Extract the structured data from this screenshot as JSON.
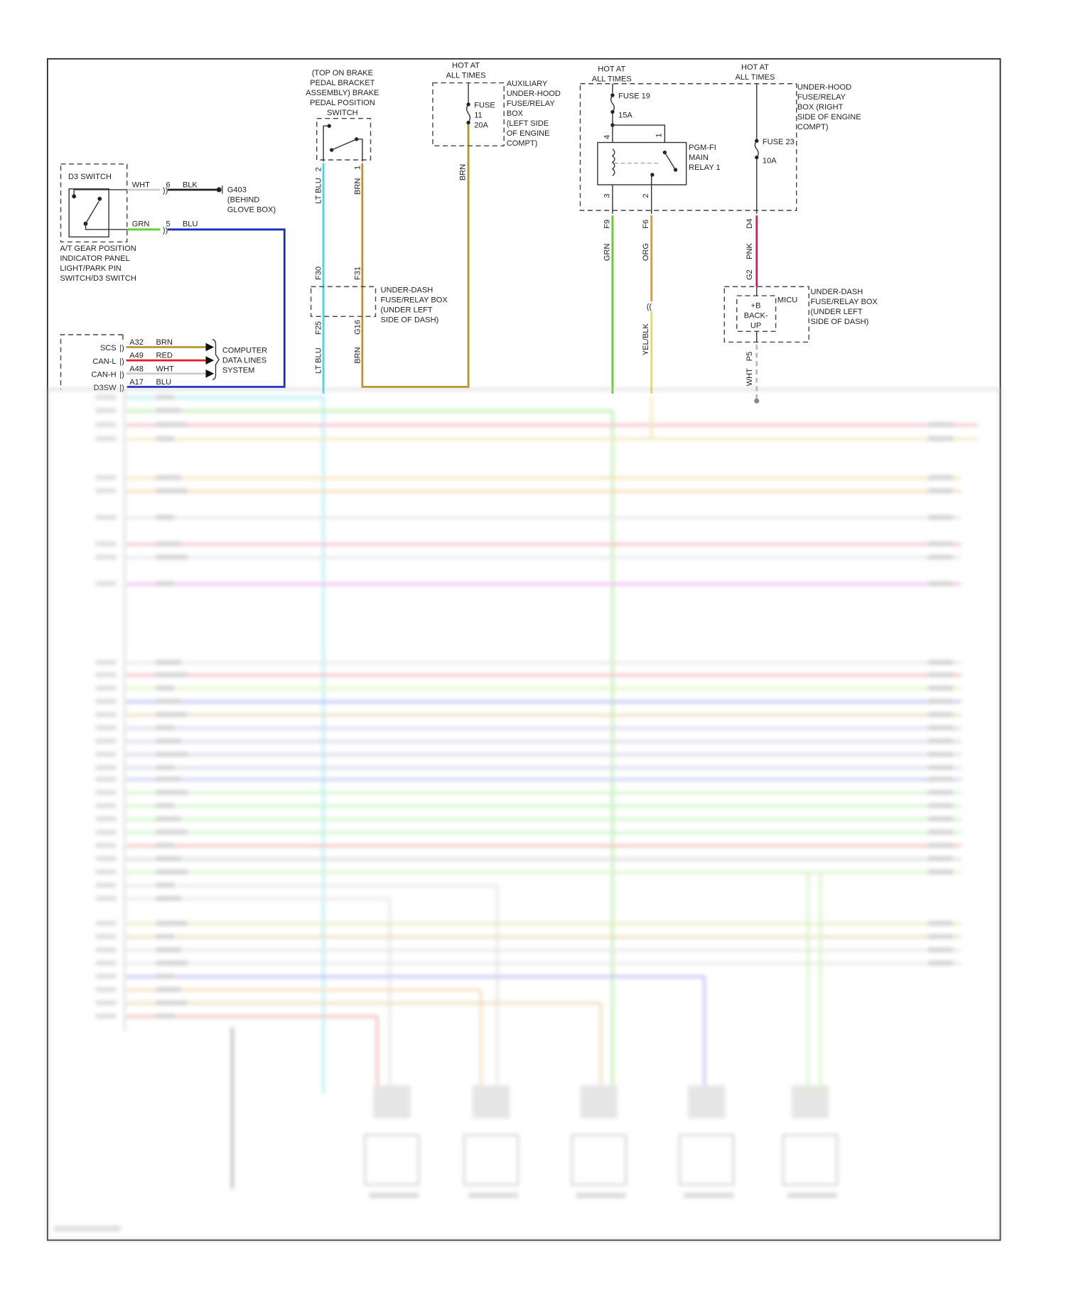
{
  "d3_switch": {
    "title": "D3 SWITCH",
    "wire_top": {
      "color_label": "WHT",
      "pin": "6",
      "to_label": "BLK"
    },
    "wire_bottom": {
      "color_label": "GRN",
      "pin": "5",
      "to_label": "BLU"
    },
    "ground": [
      "G403",
      "(BEHIND",
      "GLOVE BOX)"
    ],
    "caption": [
      "A/T GEAR POSITION",
      "INDICATOR PANEL",
      "LIGHT/PARK PIN",
      "SWITCH/D3 SWITCH"
    ]
  },
  "pcm_pins": [
    {
      "name": "SCS",
      "pin": "A32",
      "wire": "BRN"
    },
    {
      "name": "CAN-L",
      "pin": "A49",
      "wire": "RED"
    },
    {
      "name": "CAN-H",
      "pin": "A48",
      "wire": "WHT"
    },
    {
      "name": "D3SW",
      "pin": "A17",
      "wire": "BLU"
    }
  ],
  "data_lines": [
    "COMPUTER",
    "DATA LINES",
    "SYSTEM"
  ],
  "brake_switch": {
    "title": [
      "(TOP ON BRAKE",
      "PEDAL BRACKET",
      "ASSEMBLY) BRAKE",
      "PEDAL POSITION",
      "SWITCH"
    ],
    "pin_left": "2",
    "pin_right": "1",
    "wire_left": "LT BLU",
    "wire_right": "BRN",
    "conn_f30": "F30",
    "conn_f31": "F31",
    "conn_f25": "F25",
    "conn_g16": "G16",
    "box_label": [
      "UNDER-DASH",
      "FUSE/RELAY BOX",
      "(UNDER LEFT",
      "SIDE OF DASH)"
    ]
  },
  "aux_fuse": {
    "hot": [
      "HOT AT",
      "ALL TIMES"
    ],
    "fuse": [
      "FUSE",
      "11",
      "20A"
    ],
    "box_label": [
      "AUXILIARY",
      "UNDER-HOOD",
      "FUSE/RELAY",
      "BOX",
      "(LEFT SIDE",
      "OF ENGINE",
      "COMPT)"
    ],
    "wire": "BRN"
  },
  "main_relay": {
    "hot_left": [
      "HOT AT",
      "ALL TIMES"
    ],
    "hot_right": [
      "HOT AT",
      "ALL TIMES"
    ],
    "fuse19": [
      "FUSE 19",
      "15A"
    ],
    "fuse23": [
      "FUSE 23",
      "10A"
    ],
    "relay": [
      "PGM-FI",
      "MAIN",
      "RELAY 1"
    ],
    "pins": {
      "p4": "4",
      "p1": "1",
      "p3": "3",
      "p2": "2"
    },
    "box_label": [
      "UNDER-HOOD",
      "FUSE/RELAY",
      "BOX (RIGHT",
      "SIDE OF ENGINE",
      "COMPT)"
    ],
    "conn_f9": "F9",
    "conn_f6": "F6",
    "conn_d4": "D4",
    "conn_g2": "G2",
    "conn_p5": "P5",
    "wire_grn": "GRN",
    "wire_org": "ORG",
    "wire_yelblk": "YEL/BLK",
    "wire_pnk": "PNK",
    "wire_wht": "WHT"
  },
  "micu": {
    "inner": [
      "+B",
      "BACK-",
      "UP"
    ],
    "name": "MICU",
    "box_label": [
      "UNDER-DASH",
      "FUSE/RELAY BOX",
      "(UNDER LEFT",
      "SIDE OF DASH)"
    ]
  },
  "wire_colors": {
    "ltblu": "#3fd8e8",
    "brn": "#b8962e",
    "blu": "#1a2bc0",
    "grn": "#5ad12a",
    "red": "#e02020",
    "wht": "#cccccc",
    "org": "#f09020",
    "yel": "#e8e040",
    "pnk": "#d81860",
    "blk": "#222222"
  },
  "blurred_wires": [
    "#9be8f0",
    "#a8e890",
    "#f0a0b0",
    "#e8e0a0",
    "#f0d8a0",
    "#f8c890",
    "#dddddd",
    "#f0a0b0",
    "#dddddd",
    "#e8a0e8",
    "#dddddd",
    "#f0a0a8",
    "#d8f0a0",
    "#a0a8f0",
    "#e0d0a0",
    "#c8c8e0",
    "#c8c8e0",
    "#c8c8e0",
    "#c8c8e0",
    "#b0b8f0",
    "#b8f0b0",
    "#b8f0b0",
    "#b8f0b0",
    "#b8f0b0",
    "#f0a0a0",
    "#cccccc",
    "#c8f0b0",
    "#dddddd",
    "#dddddd",
    "#d8e8a0",
    "#e0d0a0",
    "#dddddd",
    "#dddddd",
    "#a8a8f0",
    "#f8d0a0",
    "#e0d0a0",
    "#f0a0a0"
  ]
}
